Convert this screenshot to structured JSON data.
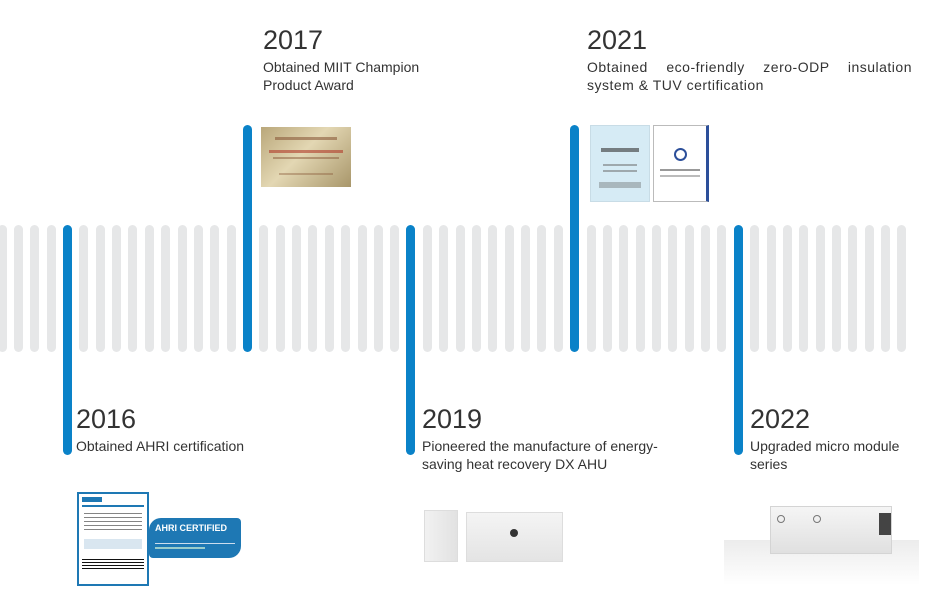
{
  "accent_color": "#0a82c8",
  "bar_color": "#e6e7e8",
  "milestones": [
    {
      "year": "2016",
      "text": "Obtained AHRI certification",
      "image": "ahri-certificate-and-badge",
      "badge_text": "AHRI CERTIFIED"
    },
    {
      "year": "2017",
      "text": "Obtained MIIT Champion Product Award",
      "image": "award-plaque"
    },
    {
      "year": "2019",
      "text": "Pioneered the manufacture of energy-saving heat recovery DX AHU",
      "image": "dx-ahu-units"
    },
    {
      "year": "2021",
      "text": "Obtained eco-friendly zero-ODP insulation system & TUV certification",
      "image": "test-report-certificates"
    },
    {
      "year": "2022",
      "text": "Upgraded micro module series",
      "image": "micro-module-ahu"
    }
  ]
}
